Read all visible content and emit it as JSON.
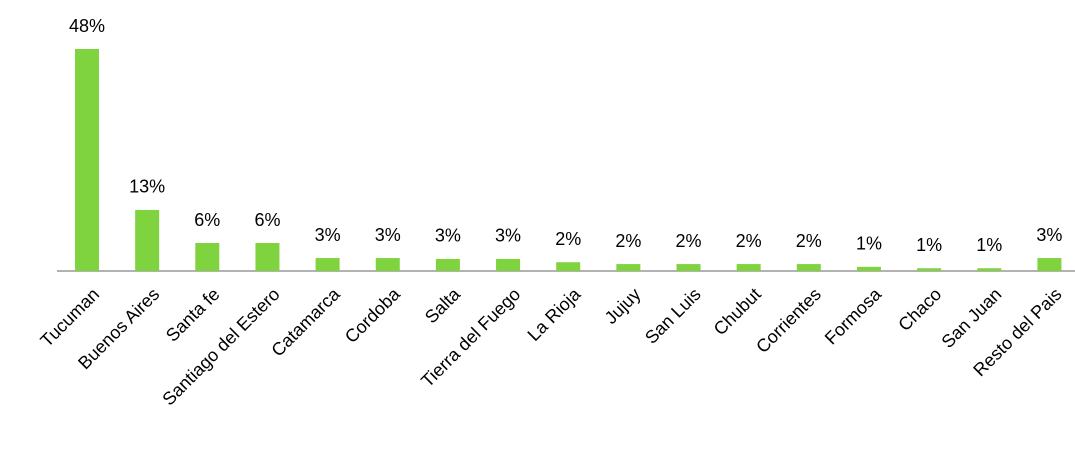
{
  "chart_data": {
    "type": "bar",
    "categories": [
      "Tucuman",
      "Buenos Aires",
      "Santa fe",
      "Santiago del Estero",
      "Catamarca",
      "Cordoba",
      "Salta",
      "Tierra del Fuego",
      "La Rioja",
      "Jujuy",
      "San Luis",
      "Chubut",
      "Corrientes",
      "Formosa",
      "Chaco",
      "San Juan",
      "Resto del Pais"
    ],
    "values": [
      48,
      13.2,
      6.05,
      6.05,
      2.8,
      2.8,
      2.6,
      2.6,
      1.9,
      1.5,
      1.5,
      1.5,
      1.5,
      0.9,
      0.6,
      0.6,
      2.8
    ],
    "value_labels": [
      "48%",
      "13%",
      "6%",
      "6%",
      "3%",
      "3%",
      "3%",
      "3%",
      "2%",
      "2%",
      "2%",
      "2%",
      "2%",
      "1%",
      "1%",
      "1%",
      "3%"
    ],
    "color": "#7ed33f"
  }
}
